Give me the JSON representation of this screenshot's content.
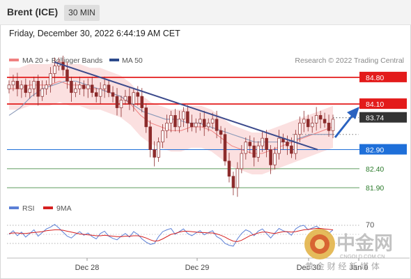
{
  "header": {
    "title": "Brent (ICE)",
    "timeframe": "30 MIN"
  },
  "timestamp": "Friday, December 30, 2022 6:44:19 AM CET",
  "legend": {
    "ma20_label": "MA 20 + Bollinger Bands",
    "ma50_label": "MA 50",
    "ma20_color": "#f08080",
    "ma50_color": "#2c4a8c"
  },
  "copyright": "Research © 2022 Trading Central",
  "price_levels": [
    {
      "label": "84.80",
      "value": 84.8,
      "kind": "resistance",
      "color": "#e31b1b"
    },
    {
      "label": "84.10",
      "value": 84.1,
      "kind": "resistance",
      "color": "#e31b1b"
    },
    {
      "label": "83.74",
      "value": 83.74,
      "kind": "last",
      "color": "#333333"
    },
    {
      "label": "82.90",
      "value": 82.9,
      "kind": "pivot",
      "color": "#1e6fd9"
    },
    {
      "label": "82.40",
      "value": 82.4,
      "kind": "support",
      "color": "#2a7a2a"
    },
    {
      "label": "81.90",
      "value": 81.9,
      "kind": "support",
      "color": "#2a7a2a"
    }
  ],
  "rsi": {
    "label": "RSI",
    "ma_label": "9MA",
    "level_label": "70",
    "rsi_color": "#5b7fd6",
    "ma_color": "#d62020"
  },
  "xaxis": {
    "labels": [
      "Dec 28",
      "Dec 29",
      "Dec 30",
      "Jan 0"
    ]
  },
  "watermark": {
    "name": "中金网",
    "domain": "CNGOLD.COM.CN",
    "slogan": "黄 金 财 经 新 媒 体"
  },
  "chart_data": {
    "type": "candlestick",
    "instrument": "Brent (ICE)",
    "interval": "30 MIN",
    "ylim": [
      81.7,
      85.0
    ],
    "close_series": [
      84.6,
      84.7,
      84.5,
      84.6,
      84.4,
      84.5,
      84.7,
      84.3,
      84.5,
      84.6,
      84.9,
      85.1,
      85.2,
      85.0,
      84.7,
      84.4,
      84.5,
      84.6,
      84.5,
      84.6,
      84.4,
      84.3,
      84.5,
      84.6,
      84.4,
      84.3,
      84.0,
      84.2,
      84.3,
      84.1,
      84.4,
      84.3,
      84.0,
      83.5,
      82.9,
      82.7,
      83.1,
      83.4,
      83.6,
      83.8,
      83.5,
      83.7,
      83.9,
      83.6,
      83.5,
      83.6,
      83.7,
      83.5,
      83.6,
      83.7,
      83.4,
      83.3,
      82.6,
      82.2,
      81.9,
      82.4,
      82.8,
      83.1,
      83.0,
      82.7,
      83.0,
      83.2,
      82.9,
      82.5,
      82.8,
      83.2,
      83.1,
      83.0,
      82.8,
      83.3,
      83.6,
      83.7,
      83.5,
      83.6,
      83.8,
      83.7,
      83.6,
      83.4,
      83.7
    ],
    "ma20_path": [
      84.5,
      84.5,
      84.6,
      84.6,
      84.6,
      84.7,
      84.6,
      84.6,
      84.5,
      84.5,
      84.4,
      84.3,
      84.1,
      83.8,
      83.6,
      83.5,
      83.4,
      83.4,
      83.5,
      83.5,
      83.4,
      83.2,
      83.0,
      82.9,
      82.8,
      82.8,
      82.9,
      83.0,
      83.1,
      83.2,
      83.3,
      83.4,
      83.5
    ],
    "ma50_path": [
      83.8,
      84.0,
      84.3,
      84.5,
      84.6,
      84.7,
      84.7,
      84.6,
      84.5,
      84.4,
      84.3,
      84.1,
      83.9,
      83.8,
      83.7,
      83.7,
      83.6,
      83.6,
      83.5,
      83.4,
      83.3,
      83.2,
      83.1,
      83.1,
      83.1,
      83.1,
      83.2,
      83.3,
      83.3,
      83.3
    ],
    "trendline": {
      "from": 85.2,
      "to": 82.9
    },
    "rsi_series": [
      50,
      58,
      47,
      55,
      44,
      52,
      60,
      46,
      54,
      62,
      66,
      72,
      64,
      55,
      46,
      42,
      50,
      56,
      48,
      53,
      45,
      40,
      52,
      57,
      46,
      41,
      38,
      46,
      52,
      44,
      56,
      50,
      40,
      33,
      28,
      30,
      45,
      56,
      60,
      63,
      50,
      56,
      62,
      52,
      47,
      53,
      58,
      49,
      54,
      58,
      45,
      40,
      30,
      26,
      24,
      40,
      52,
      60,
      56,
      47,
      57,
      62,
      52,
      42,
      53,
      63,
      58,
      55,
      48,
      62,
      68,
      70,
      60,
      64,
      68,
      62,
      58,
      52,
      60
    ],
    "rsi_ma9_series": [
      52,
      53,
      53,
      52,
      52,
      53,
      54,
      55,
      56,
      58,
      59,
      60,
      60,
      59,
      57,
      55,
      53,
      51,
      50,
      49,
      48,
      47,
      47,
      48,
      47,
      46,
      45,
      45,
      46,
      46,
      47,
      47,
      45,
      42,
      38,
      35,
      36,
      40,
      45,
      50,
      52,
      55,
      57,
      57,
      56,
      55,
      54,
      54,
      53,
      53,
      51,
      48,
      44,
      39,
      35,
      34,
      37,
      42,
      47,
      50,
      53,
      55,
      55,
      53,
      52,
      54,
      56,
      56,
      55,
      56,
      58,
      60,
      61,
      62,
      63,
      63,
      62,
      61,
      60
    ],
    "rsi_level": 70
  }
}
